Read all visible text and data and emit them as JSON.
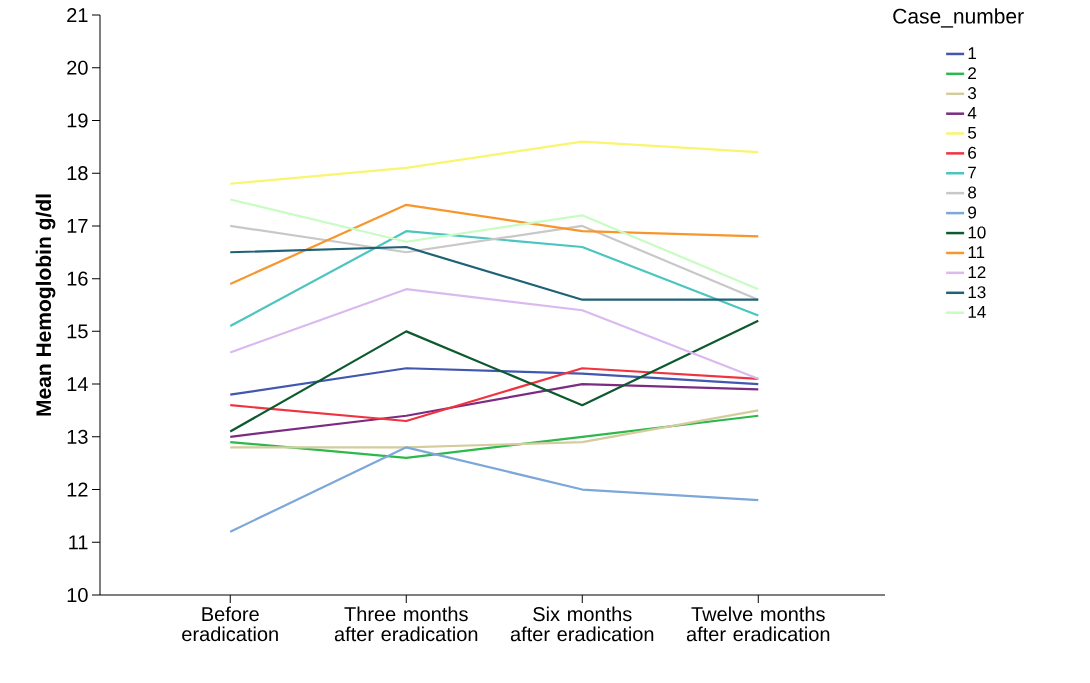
{
  "chart_data": {
    "type": "line",
    "ylabel": "Mean Hemoglobin g/dl",
    "legend_title": "Case_number",
    "legend": "right",
    "categories": [
      "Before eradication",
      "Three months after eradication",
      "Six months after eradication",
      "Twelve months after eradication"
    ],
    "ylim": [
      10,
      21
    ],
    "yticks": [
      10,
      11,
      12,
      13,
      14,
      15,
      16,
      17,
      18,
      19,
      20,
      21
    ],
    "series": [
      {
        "name": "1",
        "color": "#4157b0",
        "values": [
          13.8,
          14.3,
          14.2,
          14.0
        ]
      },
      {
        "name": "2",
        "color": "#2db84d",
        "values": [
          12.9,
          12.6,
          13.0,
          13.4
        ]
      },
      {
        "name": "3",
        "color": "#d4cc9c",
        "values": [
          12.8,
          12.8,
          12.9,
          13.5
        ]
      },
      {
        "name": "4",
        "color": "#7b2c82",
        "values": [
          13.0,
          13.4,
          14.0,
          13.9
        ]
      },
      {
        "name": "5",
        "color": "#f9f56e",
        "values": [
          17.8,
          18.1,
          18.6,
          18.4
        ]
      },
      {
        "name": "6",
        "color": "#f0333f",
        "values": [
          13.6,
          13.3,
          14.3,
          14.1
        ]
      },
      {
        "name": "7",
        "color": "#4cc5c0",
        "values": [
          15.1,
          16.9,
          16.6,
          15.3
        ]
      },
      {
        "name": "8",
        "color": "#c8c8c8",
        "values": [
          17.0,
          16.5,
          17.0,
          15.6
        ]
      },
      {
        "name": "9",
        "color": "#7ba7d9",
        "values": [
          11.2,
          12.8,
          12.0,
          11.8
        ]
      },
      {
        "name": "10",
        "color": "#0d5a2f",
        "values": [
          13.1,
          15.0,
          13.6,
          15.2
        ]
      },
      {
        "name": "11",
        "color": "#f7962b",
        "values": [
          15.9,
          17.4,
          16.9,
          16.8
        ]
      },
      {
        "name": "12",
        "color": "#dab9ef",
        "values": [
          14.6,
          15.8,
          15.4,
          14.1
        ]
      },
      {
        "name": "13",
        "color": "#1f6275",
        "values": [
          16.5,
          16.6,
          15.6,
          15.6
        ]
      },
      {
        "name": "14",
        "color": "#c8fcc3",
        "values": [
          17.5,
          16.7,
          17.2,
          15.8
        ]
      }
    ]
  }
}
